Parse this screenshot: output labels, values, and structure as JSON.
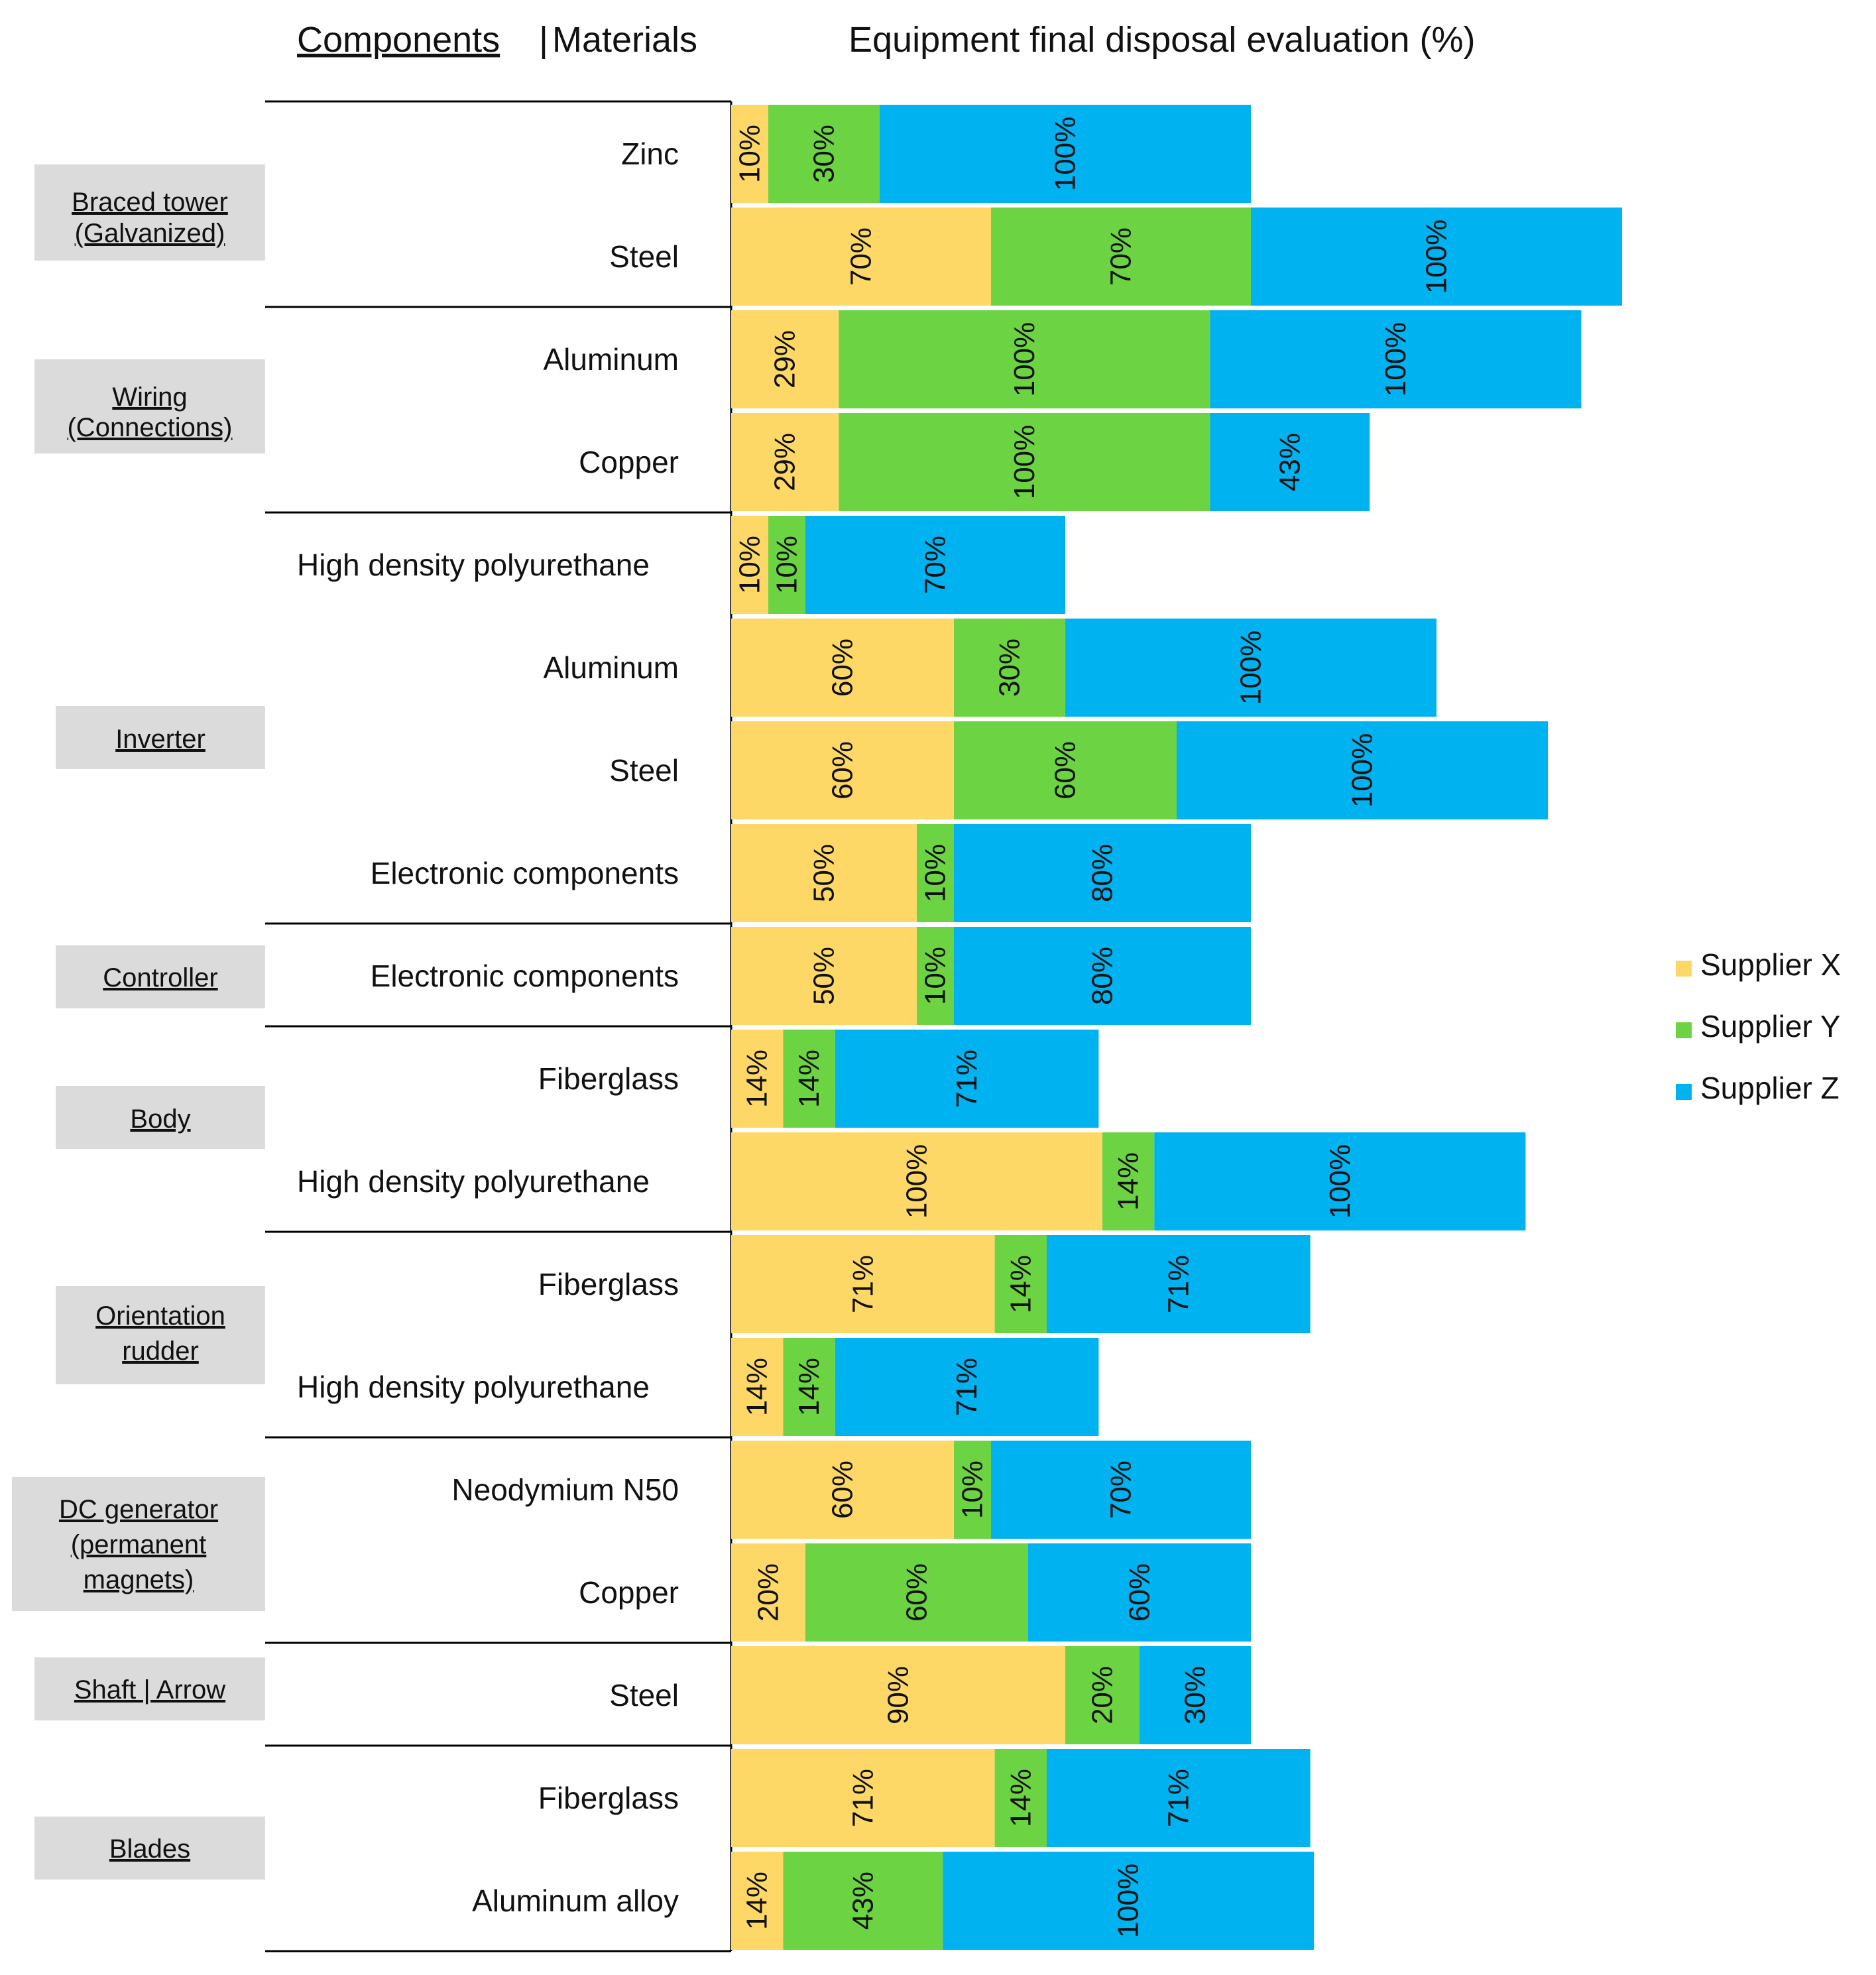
{
  "colors": {
    "x": "#FDD866",
    "y": "#6CD443",
    "z": "#00B2F0",
    "component_box": "#DBDBDB",
    "line": "#000000"
  },
  "header": {
    "components": "Components",
    "separator": " | ",
    "materials": "Materials",
    "title": "Equipment final disposal evaluation (%)"
  },
  "legend": [
    "Supplier X",
    "Supplier Y",
    "Supplier Z"
  ],
  "components": [
    "Braced tower (Galvanized)",
    "Wiring (Connections)",
    "Inverter",
    "Controller",
    "Body",
    "Orientation rudder",
    "DC generator (permanent magnets)",
    "Shaft | Arrow",
    "Blades"
  ],
  "chart_data": {
    "type": "bar",
    "orientation": "horizontal",
    "stacked": true,
    "title": "Equipment final disposal evaluation (%)",
    "xlabel": "",
    "ylabel": "Components | Materials",
    "xlim": [
      0,
      250
    ],
    "legend_position": "right",
    "categories": [
      "Braced tower (Galvanized) | Zinc",
      "Braced tower (Galvanized) | Steel",
      "Wiring (Connections) | Aluminum",
      "Wiring (Connections) | Copper",
      "Inverter | High density polyurethane",
      "Inverter | Aluminum",
      "Inverter | Steel",
      "Inverter | Electronic components",
      "Controller | Electronic components",
      "Body | Fiberglass",
      "Body | High density polyurethane",
      "Orientation rudder | Fiberglass",
      "Orientation rudder | High density polyurethane",
      "DC generator (permanent magnets) | Neodymium N50",
      "DC generator (permanent magnets) | Copper",
      "Shaft | Arrow | Steel",
      "Blades | Fiberglass",
      "Blades | Aluminum alloy"
    ],
    "rows": [
      {
        "group": 0,
        "material": "Zinc",
        "x": 10,
        "y": 30,
        "z": 100
      },
      {
        "group": 0,
        "material": "Steel",
        "x": 70,
        "y": 70,
        "z": 100
      },
      {
        "group": 1,
        "material": "Aluminum",
        "x": 29,
        "y": 100,
        "z": 100
      },
      {
        "group": 1,
        "material": "Copper",
        "x": 29,
        "y": 100,
        "z": 43
      },
      {
        "group": 2,
        "material": "High density polyurethane",
        "x": 10,
        "y": 10,
        "z": 70
      },
      {
        "group": 2,
        "material": "Aluminum",
        "x": 60,
        "y": 30,
        "z": 100
      },
      {
        "group": 2,
        "material": "Steel",
        "x": 60,
        "y": 60,
        "z": 100
      },
      {
        "group": 2,
        "material": "Electronic components",
        "x": 50,
        "y": 10,
        "z": 80
      },
      {
        "group": 3,
        "material": "Electronic components",
        "x": 50,
        "y": 10,
        "z": 80
      },
      {
        "group": 4,
        "material": "Fiberglass",
        "x": 14,
        "y": 14,
        "z": 71
      },
      {
        "group": 4,
        "material": "High density polyurethane",
        "x": 100,
        "y": 14,
        "z": 100
      },
      {
        "group": 5,
        "material": "Fiberglass",
        "x": 71,
        "y": 14,
        "z": 71
      },
      {
        "group": 5,
        "material": "High density polyurethane",
        "x": 14,
        "y": 14,
        "z": 71
      },
      {
        "group": 6,
        "material": "Neodymium N50",
        "x": 60,
        "y": 10,
        "z": 70
      },
      {
        "group": 6,
        "material": "Copper",
        "x": 20,
        "y": 60,
        "z": 60
      },
      {
        "group": 7,
        "material": "Steel",
        "x": 90,
        "y": 20,
        "z": 30
      },
      {
        "group": 8,
        "material": "Fiberglass",
        "x": 71,
        "y": 14,
        "z": 71
      },
      {
        "group": 8,
        "material": "Aluminum alloy",
        "x": 14,
        "y": 43,
        "z": 100
      }
    ],
    "series": [
      {
        "name": "Supplier X",
        "values": [
          10,
          70,
          29,
          29,
          10,
          60,
          60,
          50,
          50,
          14,
          100,
          71,
          14,
          60,
          20,
          90,
          71,
          14
        ]
      },
      {
        "name": "Supplier Y",
        "values": [
          30,
          70,
          100,
          100,
          10,
          30,
          60,
          10,
          10,
          14,
          14,
          14,
          14,
          10,
          60,
          20,
          14,
          43
        ]
      },
      {
        "name": "Supplier Z",
        "values": [
          100,
          100,
          100,
          43,
          70,
          100,
          100,
          80,
          80,
          71,
          100,
          71,
          71,
          70,
          60,
          30,
          71,
          100
        ]
      }
    ]
  }
}
